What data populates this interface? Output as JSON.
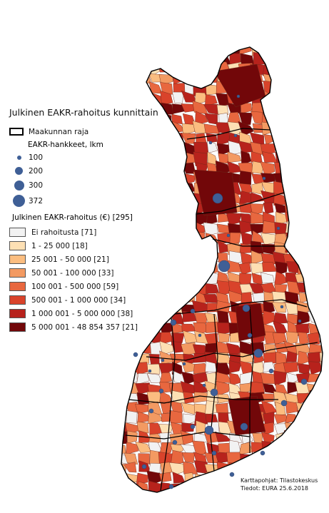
{
  "legend": {
    "title": "Julkinen EAKR-rahoitus kunnittain",
    "border_label": "Maakunnan raja",
    "projects_title": "EAKR-hankkeet, lkm",
    "projects_sizes": [
      "100",
      "200",
      "300",
      "372"
    ],
    "funding_title": "Julkinen EAKR-rahoitus (€) [295]",
    "classes": [
      {
        "label": "Ei rahoitusta  [71]",
        "color": "#f2f2f2"
      },
      {
        "label": "1 - 25 000  [18]",
        "color": "#fde0b4"
      },
      {
        "label": "25 001 - 50 000  [21]",
        "color": "#fbbd80"
      },
      {
        "label": "50 001 - 100 000  [33]",
        "color": "#f39a62"
      },
      {
        "label": "100 001 - 500 000  [59]",
        "color": "#e8673f"
      },
      {
        "label": "500 001 - 1 000 000  [34]",
        "color": "#d9432b"
      },
      {
        "label": "1 000 001 - 5 000 000  [38]",
        "color": "#b7221c"
      },
      {
        "label": "5 000 001 - 48 854 357  [21]",
        "color": "#720709"
      }
    ]
  },
  "credits": {
    "line1": "Karttapohjat: Tilastokeskus",
    "line2": "Tiedot: EURA 25.6.2018"
  },
  "map_colors": {
    "border": "#000000",
    "municipal_border": "#6b2a1a",
    "bubble": "#3f5f96"
  }
}
